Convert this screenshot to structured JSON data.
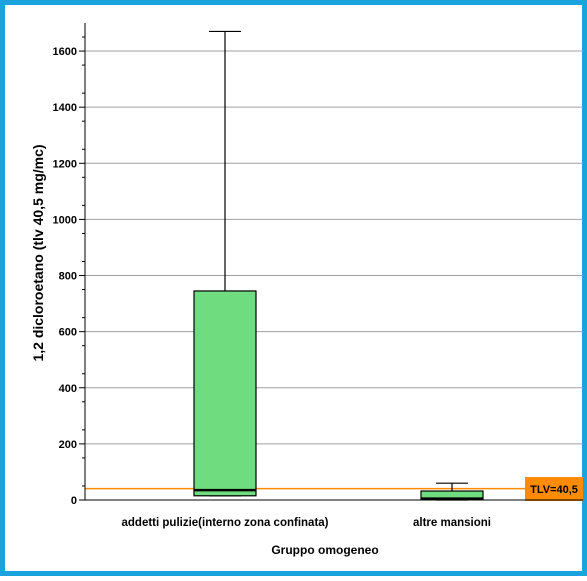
{
  "chart_data": {
    "type": "boxplot",
    "title": "",
    "xlabel": "Gruppo omogeneo",
    "ylabel": "1,2 dicloroetano (tlv 40,5 mg/mc)",
    "ylim": [
      0,
      1700
    ],
    "yticks": [
      0,
      200,
      400,
      600,
      800,
      1000,
      1200,
      1400,
      1600
    ],
    "grid": true,
    "categories": [
      "addetti pulizie(interno zona confinata)",
      "altre mansioni"
    ],
    "boxes": [
      {
        "category": "addetti pulizie(interno zona confinata)",
        "min": 15,
        "q1": 15,
        "median": 35,
        "q3": 745,
        "max": 1670
      },
      {
        "category": "altre mansioni",
        "min": 0,
        "q1": 3,
        "median": 5,
        "q3": 32,
        "max": 60
      }
    ],
    "reference_line": {
      "value": 40.5,
      "label": "TLV=40,5",
      "color": "#ff8c00"
    },
    "box_color": "#70dc80"
  }
}
